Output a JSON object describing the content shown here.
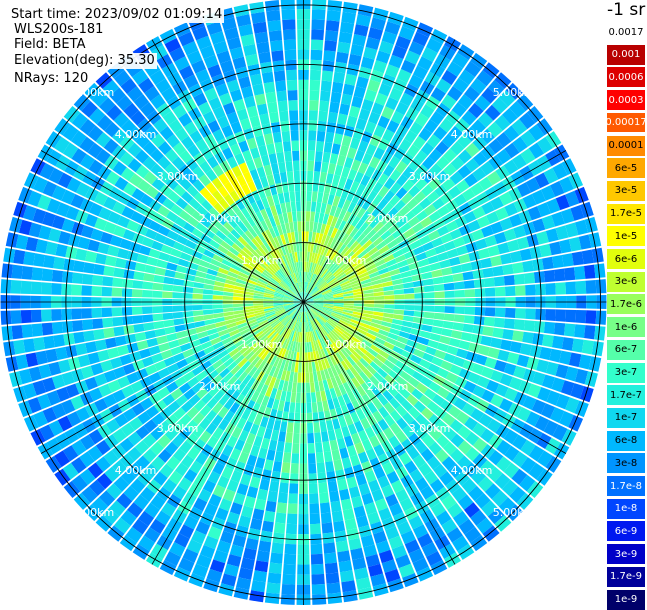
{
  "info": {
    "start_time": "Start time: 2023/09/02 01:09:14",
    "instrument": "WLS200s-181",
    "field": "Field: BETA",
    "elevation": "Elevation(deg): 35.30",
    "nrays": "NRays: 120"
  },
  "colorbar": {
    "title": "-1 sr",
    "labels": [
      "0.0017",
      "0.001",
      "0.0006",
      "0.0003",
      "0.00017",
      "0.0001",
      "6e-5",
      "3e-5",
      "1.7e-5",
      "1e-5",
      "6e-6",
      "3e-6",
      "1.7e-6",
      "1e-6",
      "6e-7",
      "3e-7",
      "1.7e-7",
      "1e-7",
      "6e-8",
      "3e-8",
      "1.7e-8",
      "1e-8",
      "6e-9",
      "3e-9",
      "1.7e-9",
      "1e-9"
    ],
    "colors": [
      "#ffffff",
      "#b80000",
      "#dd0000",
      "#ff0000",
      "#ff5a00",
      "#ff8a00",
      "#ffa800",
      "#ffc800",
      "#ffe600",
      "#ffff00",
      "#e2ff0c",
      "#bfff30",
      "#99ff5c",
      "#77ff88",
      "#55ffaa",
      "#33ffcc",
      "#22f0dd",
      "#10d8f0",
      "#00b8ff",
      "#0095ff",
      "#0070ff",
      "#0046ff",
      "#0018f0",
      "#0000c8",
      "#00009a",
      "#00006a"
    ],
    "text_colors": [
      "#000",
      "#fff",
      "#fff",
      "#fff",
      "#fff",
      "#000",
      "#000",
      "#000",
      "#000",
      "#000",
      "#000",
      "#000",
      "#000",
      "#000",
      "#000",
      "#000",
      "#000",
      "#000",
      "#000",
      "#000",
      "#fff",
      "#fff",
      "#fff",
      "#fff",
      "#fff",
      "#fff"
    ]
  },
  "range_labels": {
    "r1": "1.00km",
    "r2": "2.00km",
    "r3": "3.00km",
    "r4": "4.00km",
    "r5": "5.00km"
  },
  "chart_data": {
    "type": "heatmap",
    "projection": "polar PPI",
    "field": "BETA",
    "units": "-1 sr",
    "n_rays": 120,
    "elevation_deg": 35.3,
    "range_rings_km": [
      1,
      2,
      3,
      4,
      5
    ],
    "max_range_km": 5.1,
    "azimuth_lines_deg": [
      0,
      30,
      60,
      90,
      120,
      150,
      180,
      210,
      240,
      270,
      300,
      330
    ],
    "radial_profile": {
      "range_km": [
        0.0,
        0.3,
        0.7,
        1.0,
        1.3,
        1.7,
        2.0,
        2.3,
        2.7,
        3.0,
        3.5,
        4.0,
        4.5,
        5.0
      ],
      "beta": [
        1.7e-07,
        6e-07,
        1e-06,
        1.7e-06,
        1e-06,
        3e-07,
        1.7e-07,
        1.7e-07,
        1.7e-07,
        1e-07,
        1e-07,
        6e-08,
        3e-08,
        3e-08
      ]
    },
    "notable_feature": {
      "description": "isolated higher-backscatter patch",
      "azimuth_deg": [
        318,
        338
      ],
      "range_km": [
        2.1,
        2.5
      ],
      "beta": 6e-06
    }
  }
}
